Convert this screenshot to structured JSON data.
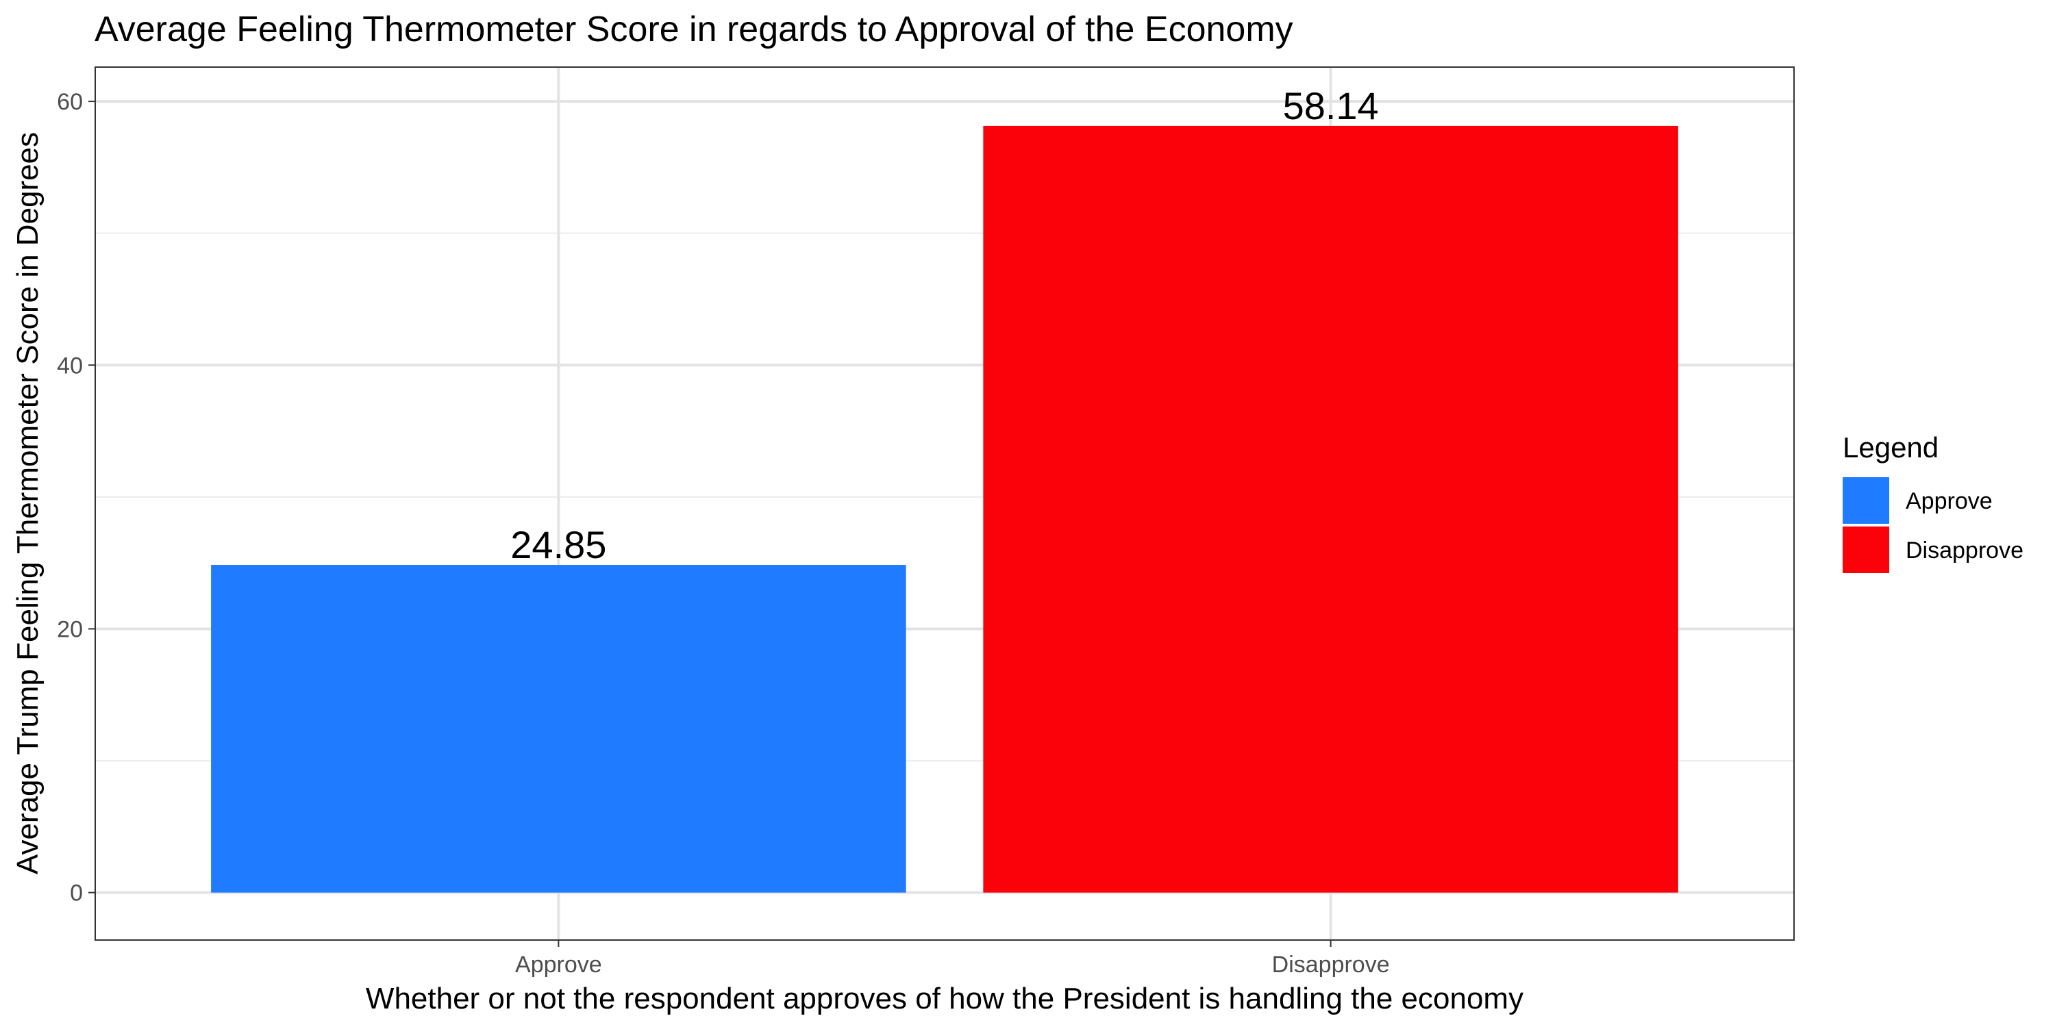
{
  "chart_data": {
    "type": "bar",
    "title": "Average Feeling Thermometer Score in regards to Approval of the Economy",
    "xlabel": "Whether or not the respondent approves of how the President is handling the economy",
    "ylabel": "Average Trump Feeling Thermometer Score in Degrees",
    "categories": [
      "Approve",
      "Disapprove"
    ],
    "values": [
      24.85,
      58.14
    ],
    "data_labels": [
      "24.85",
      "58.14"
    ],
    "colors": [
      "#1f7bff",
      "#fb020b"
    ],
    "ylim": [
      -3.6,
      62.6
    ],
    "yticks": [
      0,
      20,
      40,
      60
    ],
    "y_minor_ticks": [
      10,
      30,
      50
    ],
    "grid": true,
    "legend": {
      "title": "Legend",
      "placement": "right",
      "entries": [
        {
          "label": "Approve",
          "color": "#1f7bff"
        },
        {
          "label": "Disapprove",
          "color": "#fb020b"
        }
      ]
    }
  }
}
